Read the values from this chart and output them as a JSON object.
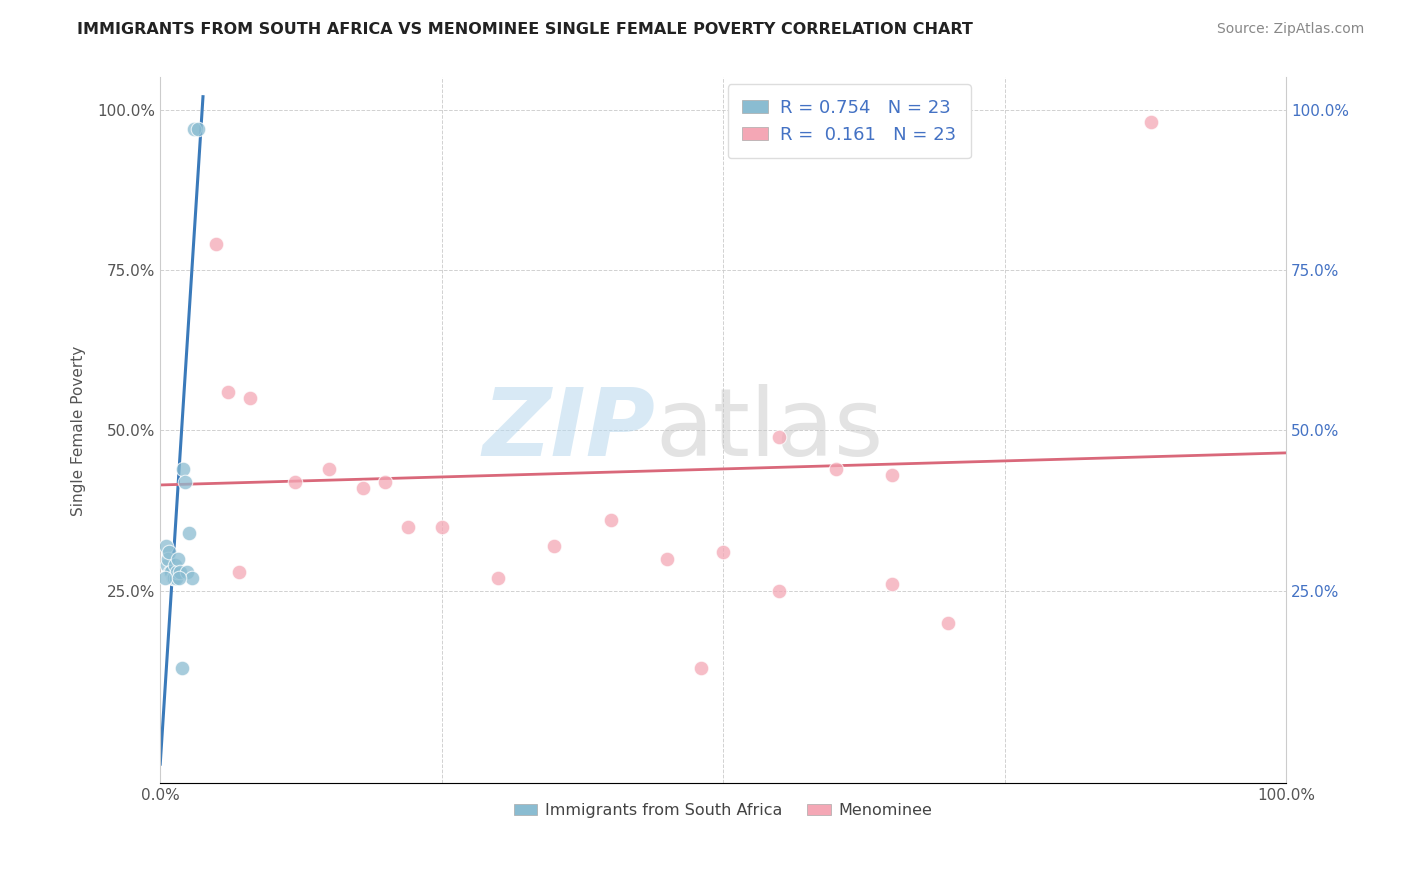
{
  "title": "IMMIGRANTS FROM SOUTH AFRICA VS MENOMINEE SINGLE FEMALE POVERTY CORRELATION CHART",
  "source": "Source: ZipAtlas.com",
  "ylabel": "Single Female Poverty",
  "blue_r": "0.754",
  "pink_r": "0.161",
  "n": "23",
  "blue_color": "#8abcd1",
  "pink_color": "#f4a7b5",
  "blue_line_color": "#3a7aba",
  "pink_line_color": "#d9687a",
  "watermark_zip": "ZIP",
  "watermark_atlas": "atlas",
  "xlim": [
    0.0,
    1.0
  ],
  "ylim": [
    -0.05,
    1.05
  ],
  "xticks": [
    0.0,
    0.25,
    0.5,
    0.75,
    1.0
  ],
  "yticks": [
    0.25,
    0.5,
    0.75,
    1.0
  ],
  "xtick_labels": [
    "0.0%",
    "",
    "",
    "",
    "100.0%"
  ],
  "ytick_labels_left": [
    "25.0%",
    "50.0%",
    "75.0%",
    "100.0%"
  ],
  "ytick_labels_right": [
    "25.0%",
    "50.0%",
    "75.0%",
    "100.0%"
  ],
  "blue_scatter_x": [
    0.03,
    0.034,
    0.005,
    0.006,
    0.007,
    0.008,
    0.009,
    0.01,
    0.011,
    0.012,
    0.013,
    0.014,
    0.015,
    0.016,
    0.018,
    0.02,
    0.022,
    0.024,
    0.026,
    0.028,
    0.004,
    0.017,
    0.019
  ],
  "blue_scatter_y": [
    0.97,
    0.97,
    0.32,
    0.29,
    0.3,
    0.31,
    0.28,
    0.28,
    0.27,
    0.27,
    0.29,
    0.27,
    0.28,
    0.3,
    0.28,
    0.44,
    0.42,
    0.28,
    0.34,
    0.27,
    0.27,
    0.27,
    0.13
  ],
  "pink_scatter_x": [
    0.88,
    0.55,
    0.65,
    0.2,
    0.05,
    0.06,
    0.08,
    0.12,
    0.15,
    0.18,
    0.25,
    0.3,
    0.35,
    0.4,
    0.5,
    0.6,
    0.07,
    0.22,
    0.45,
    0.55,
    0.65,
    0.7,
    0.48
  ],
  "pink_scatter_y": [
    0.98,
    0.49,
    0.43,
    0.42,
    0.79,
    0.56,
    0.55,
    0.42,
    0.44,
    0.41,
    0.35,
    0.27,
    0.32,
    0.36,
    0.31,
    0.44,
    0.28,
    0.35,
    0.3,
    0.25,
    0.26,
    0.2,
    0.13
  ],
  "blue_line_x0": 0.0,
  "blue_line_x1": 0.038,
  "blue_line_y0": -0.02,
  "blue_line_y1": 1.02,
  "pink_line_x0": 0.0,
  "pink_line_x1": 1.0,
  "pink_line_y0": 0.415,
  "pink_line_y1": 0.465,
  "legend_labels": [
    "Immigrants from South Africa",
    "Menominee"
  ]
}
